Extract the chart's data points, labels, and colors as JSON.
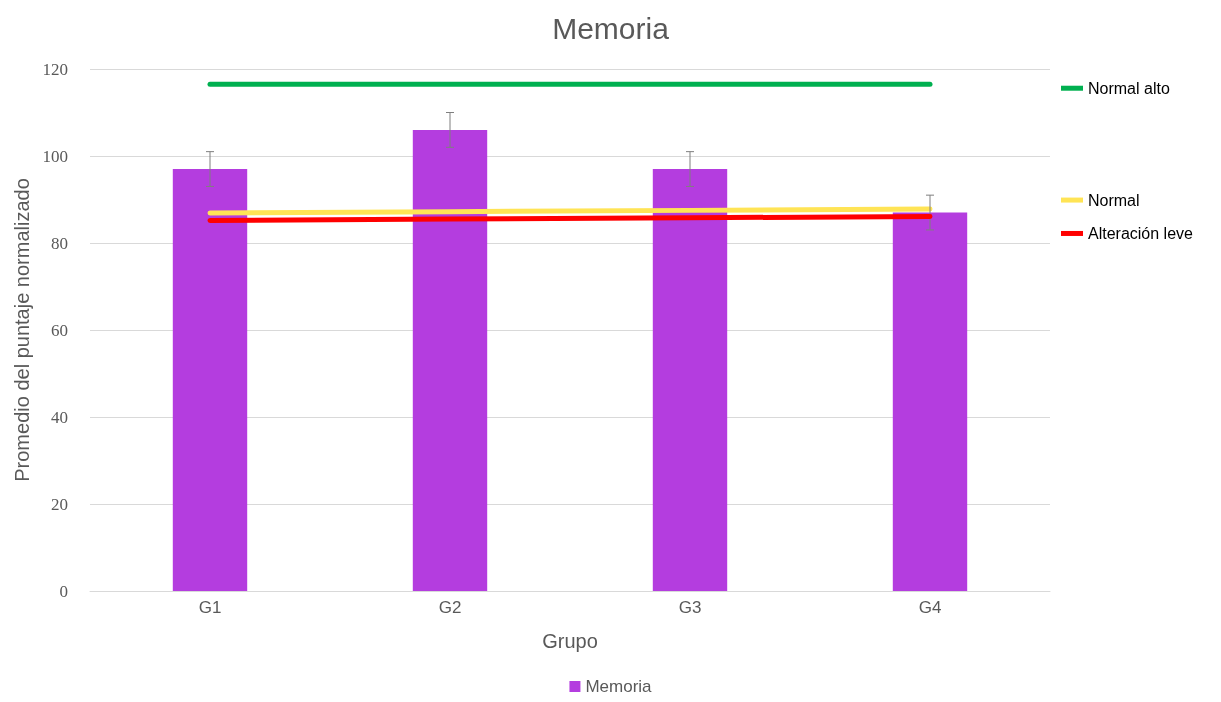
{
  "chart_data": {
    "type": "bar",
    "title": "Memoria",
    "xlabel": "Grupo",
    "ylabel": "Promedio del puntaje normalizado",
    "categories": [
      "G1",
      "G2",
      "G3",
      "G4"
    ],
    "series": [
      {
        "name": "Memoria",
        "color": "#b43ddf",
        "values": [
          97,
          106,
          97,
          87
        ],
        "errors": [
          4,
          4,
          4,
          4
        ]
      },
      {
        "name": "Normal alto",
        "type": "line",
        "color": "#00b050",
        "values": [
          116.5,
          116.5,
          116.5,
          116.5
        ]
      },
      {
        "name": "Normal",
        "type": "line",
        "color": "#ffe455",
        "values": [
          86.9,
          87.2,
          87.5,
          87.8
        ]
      },
      {
        "name": "Alteración leve",
        "type": "line",
        "color": "#ff0000",
        "values": [
          85.2,
          85.5,
          85.8,
          86.1
        ]
      }
    ],
    "ylim": [
      0,
      120
    ],
    "yticks": [
      0,
      20,
      40,
      60,
      80,
      100,
      120
    ],
    "grid": "y",
    "legend": "bottom",
    "marker": "none",
    "line_style": "solid"
  }
}
